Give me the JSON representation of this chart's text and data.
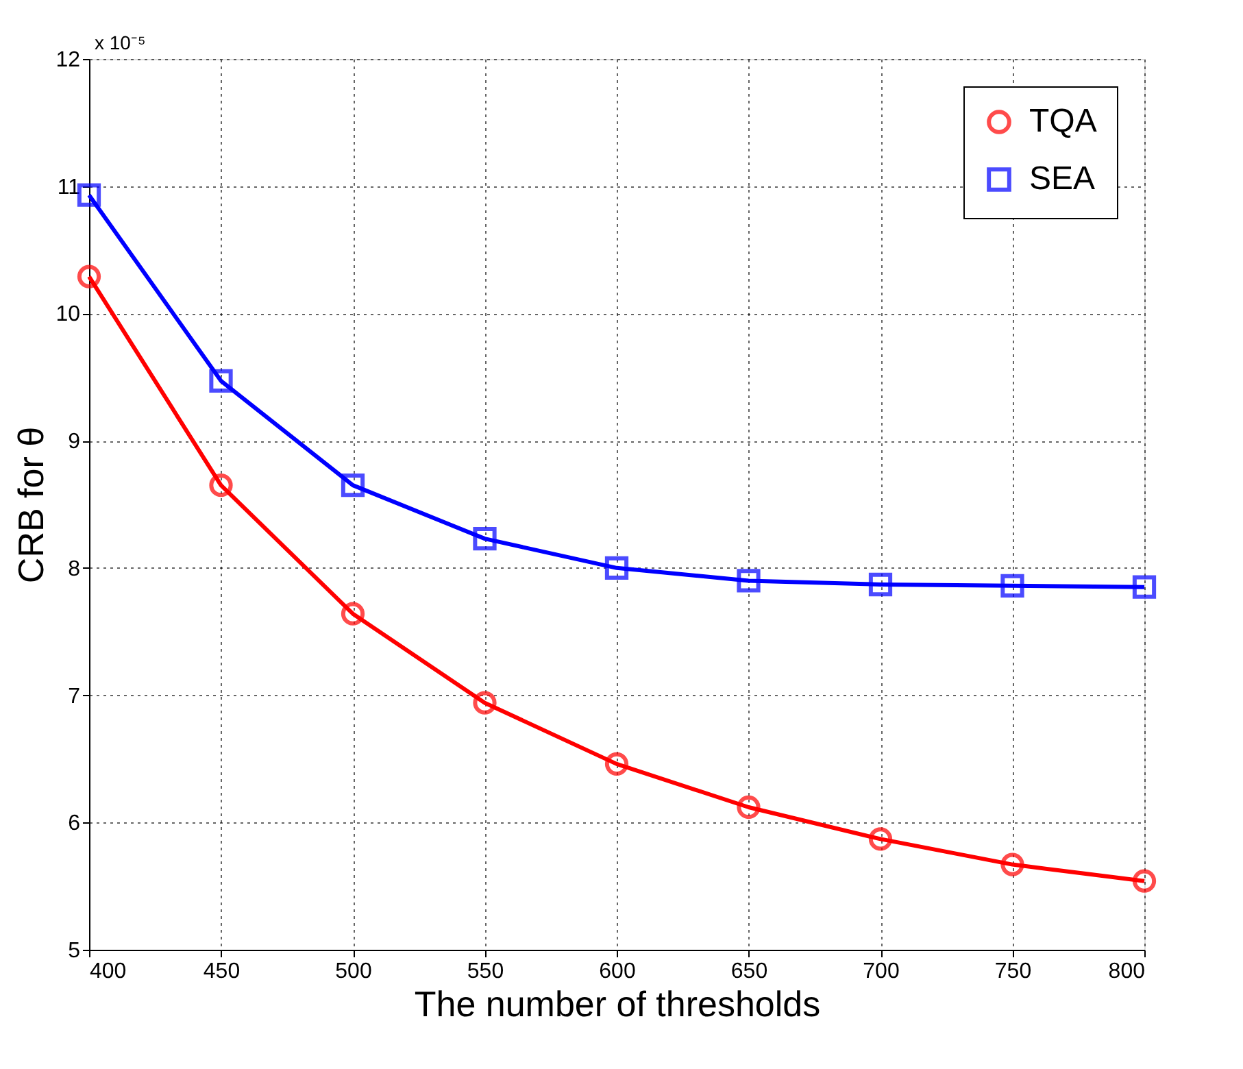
{
  "chart_data": {
    "type": "line",
    "xlabel": "The number of thresholds",
    "ylabel": "CRB for θ",
    "annotations": [
      "x 10⁻⁵"
    ],
    "x": [
      400,
      450,
      500,
      550,
      600,
      650,
      700,
      750,
      800
    ],
    "series": [
      {
        "name": "TQA",
        "color": "#ff0000",
        "marker": "circle",
        "values": [
          10.29,
          8.65,
          7.64,
          6.94,
          6.46,
          6.12,
          5.87,
          5.67,
          5.54
        ]
      },
      {
        "name": "SEA",
        "color": "#0000ff",
        "marker": "square",
        "values": [
          10.93,
          9.47,
          8.65,
          8.23,
          8.0,
          7.9,
          7.87,
          7.86,
          7.85
        ]
      }
    ],
    "xlim": [
      400,
      800
    ],
    "xticks": [
      400,
      450,
      500,
      550,
      600,
      650,
      700,
      750,
      800
    ],
    "ylim": [
      5,
      12
    ],
    "yticks": [
      5,
      6,
      7,
      8,
      9,
      10,
      11,
      12
    ],
    "grid": true,
    "legend": "top right",
    "line_style": "solid"
  }
}
